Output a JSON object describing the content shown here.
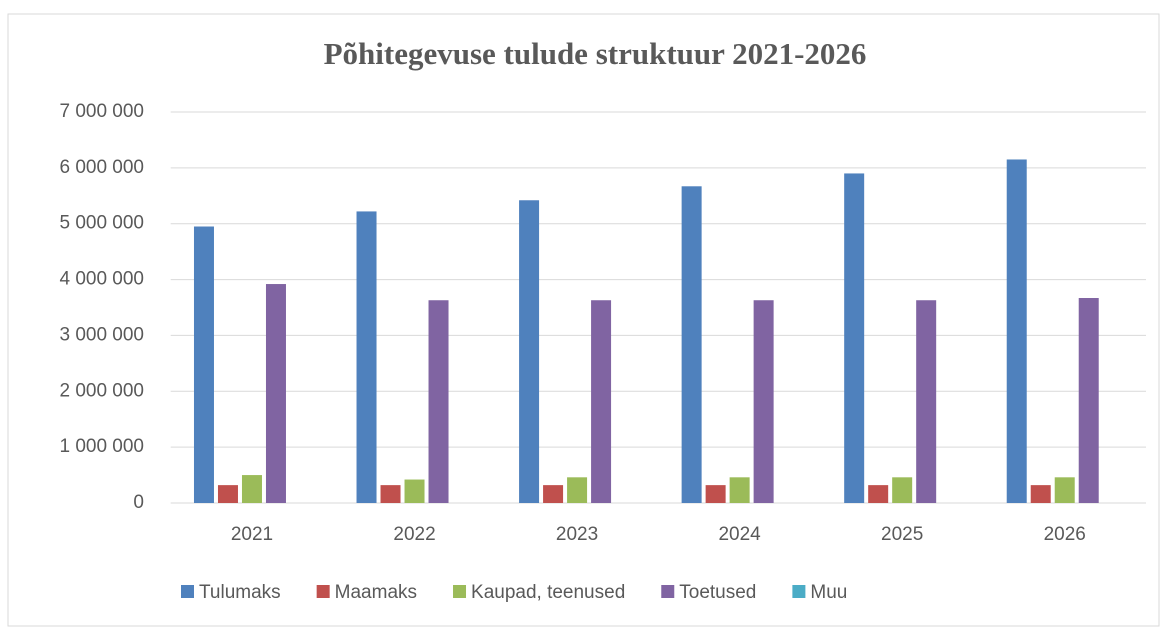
{
  "chart_data": {
    "type": "bar",
    "title": "Põhitegevuse tulude struktuur 2021-2026",
    "categories": [
      "2021",
      "2022",
      "2023",
      "2024",
      "2025",
      "2026"
    ],
    "series": [
      {
        "name": "Tulumaks",
        "color": "#4f81bd",
        "values": [
          4950000,
          5220000,
          5420000,
          5670000,
          5900000,
          6150000
        ]
      },
      {
        "name": "Maamaks",
        "color": "#c0504d",
        "values": [
          320000,
          320000,
          320000,
          320000,
          320000,
          320000
        ]
      },
      {
        "name": "Kaupad, teenused",
        "color": "#9bbb59",
        "values": [
          500000,
          420000,
          460000,
          460000,
          460000,
          460000
        ]
      },
      {
        "name": "Toetused",
        "color": "#8064a2",
        "values": [
          3920000,
          3630000,
          3630000,
          3630000,
          3630000,
          3670000
        ]
      },
      {
        "name": "Muu",
        "color": "#4bacc6",
        "values": [
          0,
          0,
          0,
          0,
          0,
          0
        ]
      }
    ],
    "ylim": [
      0,
      7000000
    ],
    "yticks": [
      0,
      {
        "value": 1000000,
        "label": "1 000 000"
      },
      {
        "value": 2000000,
        "label": "2 000 000"
      },
      {
        "value": 3000000,
        "label": "3 000 000"
      },
      {
        "value": 4000000,
        "label": "4 000 000"
      },
      {
        "value": 5000000,
        "label": "5 000 000"
      },
      {
        "value": 6000000,
        "label": "6 000 000"
      },
      {
        "value": 7000000,
        "label": "7 000 000"
      }
    ],
    "grid": true,
    "legend": "bottom"
  }
}
